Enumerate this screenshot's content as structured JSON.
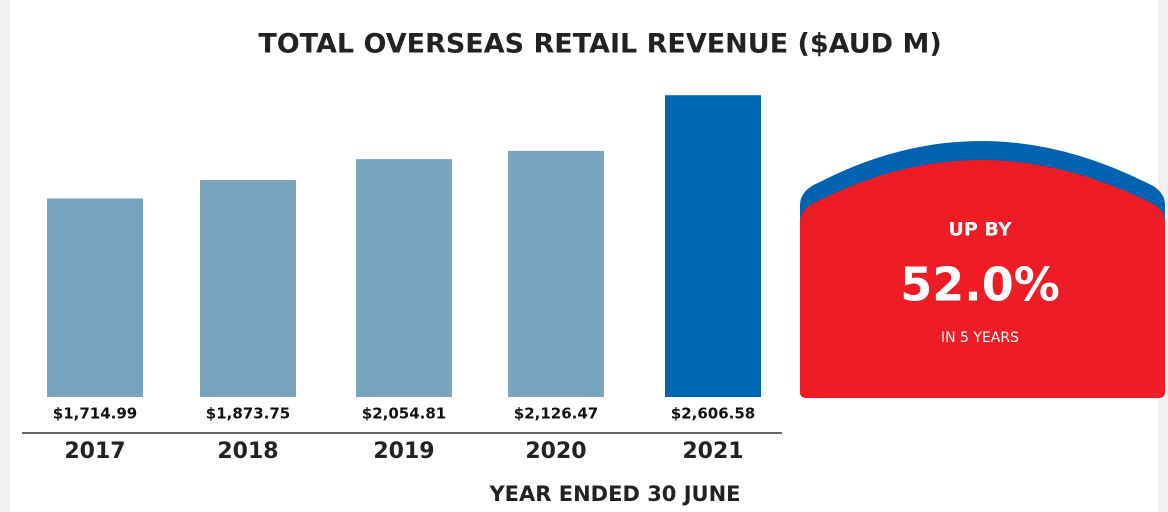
{
  "chart_data": {
    "type": "bar",
    "title": "TOTAL OVERSEAS RETAIL REVENUE ($AUD M)",
    "x_label": "YEAR ENDED 30 JUNE",
    "categories": [
      "2017",
      "2018",
      "2019",
      "2020",
      "2021"
    ],
    "values": [
      1714.99,
      1873.75,
      2054.81,
      2126.47,
      2606.58
    ],
    "value_labels": [
      "$1,714.99",
      "$1,873.75",
      "$2,054.81",
      "$2,126.47",
      "$2,606.58"
    ],
    "colors": [
      "#7aa3bf",
      "#7aa3bf",
      "#7aa3bf",
      "#7aa3bf",
      "#0066b3"
    ],
    "ylim": [
      0,
      2600
    ],
    "callout": {
      "heading": "UP BY",
      "value": "52.0%",
      "note": "IN 5 YEARS"
    }
  }
}
